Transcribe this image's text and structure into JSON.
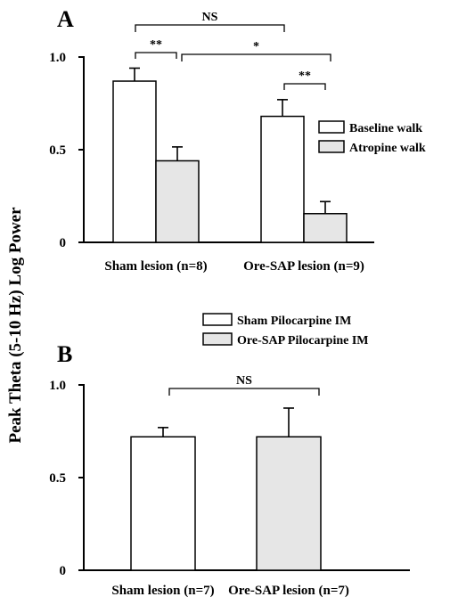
{
  "figure": {
    "ylabel": "Peak Theta (5-10 Hz) Log Power"
  },
  "chart_data": [
    {
      "type": "bar",
      "panel": "A",
      "categories": [
        "Sham lesion (n=8)",
        "Ore-SAP lesion (n=9)"
      ],
      "series": [
        {
          "name": "Baseline walk",
          "values": [
            0.87,
            0.68
          ],
          "errors": [
            0.07,
            0.09
          ],
          "color": "#ffffff"
        },
        {
          "name": "Atropine walk",
          "values": [
            0.44,
            0.155
          ],
          "errors": [
            0.075,
            0.065
          ],
          "color": "#e6e6e6"
        }
      ],
      "ylim": [
        0,
        1.0
      ],
      "yticks": [
        0,
        0.5,
        1.0
      ],
      "ytick_labels": [
        "0",
        "0.5",
        "1.0"
      ],
      "legend_position": "right",
      "grid": false,
      "significance": [
        {
          "label": "NS",
          "from": "Sham lesion (n=8) / Baseline walk",
          "to": "Ore-SAP lesion (n=9) / Baseline walk"
        },
        {
          "label": "**",
          "from": "Sham lesion (n=8) / Baseline walk",
          "to": "Sham lesion (n=8) / Atropine walk"
        },
        {
          "label": "*",
          "from": "Sham lesion (n=8) / Atropine walk",
          "to": "Ore-SAP lesion (n=9) / Atropine walk"
        },
        {
          "label": "**",
          "from": "Ore-SAP lesion (n=9) / Baseline walk",
          "to": "Ore-SAP lesion (n=9) / Atropine walk"
        }
      ]
    },
    {
      "type": "bar",
      "panel": "B",
      "categories": [
        "Sham lesion (n=7)",
        "Ore-SAP lesion (n=7)"
      ],
      "series": [
        {
          "name": "Pilocarpine IM",
          "values": [
            0.72,
            0.72
          ],
          "errors": [
            0.05,
            0.155
          ],
          "colors": [
            "#ffffff",
            "#e6e6e6"
          ]
        }
      ],
      "legend": [
        {
          "label": "Sham Pilocarpine IM",
          "color": "#ffffff"
        },
        {
          "label": "Ore-SAP Pilocarpine IM",
          "color": "#e6e6e6"
        }
      ],
      "ylim": [
        0,
        1.0
      ],
      "yticks": [
        0,
        0.5,
        1.0
      ],
      "ytick_labels": [
        "0",
        "0.5",
        "1.0"
      ],
      "legend_position": "top",
      "grid": false,
      "significance": [
        {
          "label": "NS",
          "from": "Sham lesion (n=7)",
          "to": "Ore-SAP lesion (n=7)"
        }
      ]
    }
  ]
}
